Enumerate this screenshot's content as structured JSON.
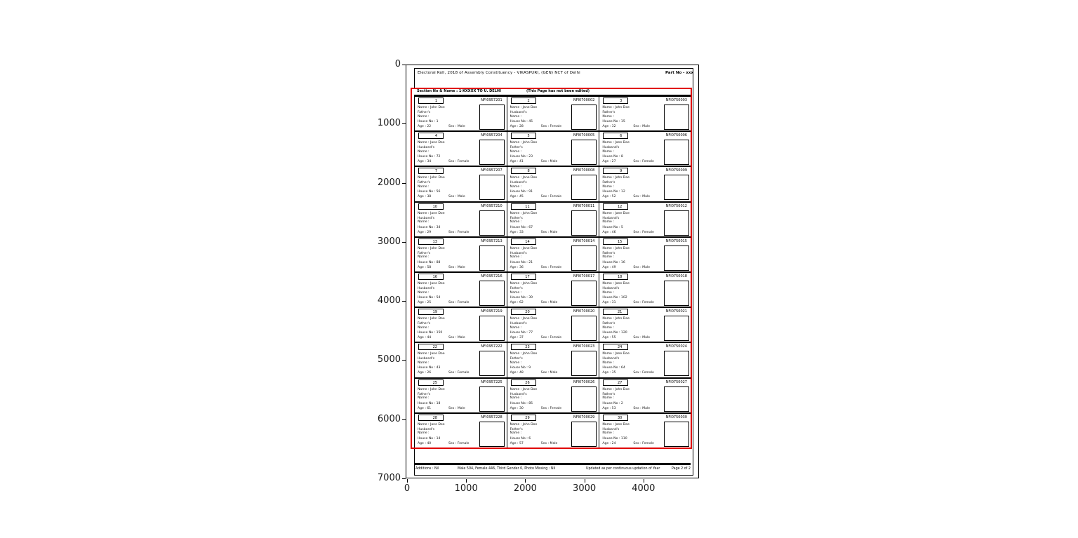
{
  "figure": {
    "x_ticks": [
      "0",
      "1000",
      "2000",
      "3000",
      "4000"
    ],
    "y_ticks": [
      "0",
      "1000",
      "2000",
      "3000",
      "4000",
      "5000",
      "6000",
      "7000"
    ]
  },
  "colors": {
    "highlight_box": "#e00000",
    "ink": "#000000",
    "background": "#ffffff"
  },
  "document": {
    "header": {
      "title": "Electoral Roll, 2018 of Assembly Constituency - VIKASPURI, (GEN) NCT of Delhi",
      "part_no": "Part No - xxx"
    },
    "section_bar": {
      "left": "Section No & Name : 1-XXXXX TO U. DELHI",
      "right": "(This Page has not been edited)"
    },
    "labels": {
      "name": "Name :",
      "house": "House No :",
      "age": "Age :",
      "sex": "Sex :"
    },
    "footer": {
      "seg1": "Additions : Nil",
      "seg2": "Male 504, Female 446, Third Gender 0, Photo Missing : Nil",
      "seg3": "Updated as per continuous updation of Year",
      "page": "Page 2 of 2"
    },
    "cards": [
      {
        "serial": "1",
        "epic": "NFI0957201",
        "name": "John Doe",
        "rel1": "Father's",
        "rel2": "Name :",
        "house": "1",
        "age": "22",
        "sex": "Male"
      },
      {
        "serial": "2",
        "epic": "NFI0700002",
        "name": "Jane Doe",
        "rel1": "Husband's",
        "rel2": "Name :",
        "house": "45",
        "age": "28",
        "sex": "Female"
      },
      {
        "serial": "3",
        "epic": "NFI0750003",
        "name": "John Doe",
        "rel1": "Father's",
        "rel2": "Name :",
        "house": "15",
        "age": "32",
        "sex": "Male"
      },
      {
        "serial": "4",
        "epic": "NFI0957204",
        "name": "Jane Doe",
        "rel1": "Husband's",
        "rel2": "Name :",
        "house": "72",
        "age": "34",
        "sex": "Female"
      },
      {
        "serial": "5",
        "epic": "NFI0700005",
        "name": "John Doe",
        "rel1": "Father's",
        "rel2": "Name :",
        "house": "23",
        "age": "41",
        "sex": "Male"
      },
      {
        "serial": "6",
        "epic": "NFI0750006",
        "name": "Jane Doe",
        "rel1": "Husband's",
        "rel2": "Name :",
        "house": "8",
        "age": "27",
        "sex": "Female"
      },
      {
        "serial": "7",
        "epic": "NFI0957207",
        "name": "John Doe",
        "rel1": "Father's",
        "rel2": "Name :",
        "house": "56",
        "age": "38",
        "sex": "Male"
      },
      {
        "serial": "8",
        "epic": "NFI0700008",
        "name": "Jane Doe",
        "rel1": "Husband's",
        "rel2": "Name :",
        "house": "91",
        "age": "45",
        "sex": "Female"
      },
      {
        "serial": "9",
        "epic": "NFI0750009",
        "name": "John Doe",
        "rel1": "Father's",
        "rel2": "Name :",
        "house": "12",
        "age": "52",
        "sex": "Male"
      },
      {
        "serial": "10",
        "epic": "NFI0957210",
        "name": "Jane Doe",
        "rel1": "Husband's",
        "rel2": "Name :",
        "house": "34",
        "age": "29",
        "sex": "Female"
      },
      {
        "serial": "11",
        "epic": "NFI0700011",
        "name": "John Doe",
        "rel1": "Father's",
        "rel2": "Name :",
        "house": "67",
        "age": "33",
        "sex": "Male"
      },
      {
        "serial": "12",
        "epic": "NFI0750012",
        "name": "Jane Doe",
        "rel1": "Husband's",
        "rel2": "Name :",
        "house": "5",
        "age": "46",
        "sex": "Female"
      },
      {
        "serial": "13",
        "epic": "NFI0957213",
        "name": "John Doe",
        "rel1": "Father's",
        "rel2": "Name :",
        "house": "88",
        "age": "58",
        "sex": "Male"
      },
      {
        "serial": "14",
        "epic": "NFI0700014",
        "name": "Jane Doe",
        "rel1": "Husband's",
        "rel2": "Name :",
        "house": "21",
        "age": "36",
        "sex": "Female"
      },
      {
        "serial": "15",
        "epic": "NFI0750015",
        "name": "John Doe",
        "rel1": "Father's",
        "rel2": "Name :",
        "house": "16",
        "age": "49",
        "sex": "Male"
      },
      {
        "serial": "16",
        "epic": "NFI0957216",
        "name": "Jane Doe",
        "rel1": "Husband's",
        "rel2": "Name :",
        "house": "54",
        "age": "25",
        "sex": "Female"
      },
      {
        "serial": "17",
        "epic": "NFI0700017",
        "name": "John Doe",
        "rel1": "Father's",
        "rel2": "Name :",
        "house": "39",
        "age": "62",
        "sex": "Male"
      },
      {
        "serial": "18",
        "epic": "NFI0750018",
        "name": "Jane Doe",
        "rel1": "Husband's",
        "rel2": "Name :",
        "house": "102",
        "age": "31",
        "sex": "Female"
      },
      {
        "serial": "19",
        "epic": "NFI0957219",
        "name": "John Doe",
        "rel1": "Father's",
        "rel2": "Name :",
        "house": "150",
        "age": "44",
        "sex": "Male"
      },
      {
        "serial": "20",
        "epic": "NFI0700020",
        "name": "Jane Doe",
        "rel1": "Husband's",
        "rel2": "Name :",
        "house": "77",
        "age": "37",
        "sex": "Female"
      },
      {
        "serial": "21",
        "epic": "NFI0750021",
        "name": "John Doe",
        "rel1": "Father's",
        "rel2": "Name :",
        "house": "120",
        "age": "55",
        "sex": "Male"
      },
      {
        "serial": "22",
        "epic": "NFI0957222",
        "name": "Jane Doe",
        "rel1": "Husband's",
        "rel2": "Name :",
        "house": "43",
        "age": "26",
        "sex": "Female"
      },
      {
        "serial": "23",
        "epic": "NFI0700023",
        "name": "John Doe",
        "rel1": "Father's",
        "rel2": "Name :",
        "house": "9",
        "age": "48",
        "sex": "Male"
      },
      {
        "serial": "24",
        "epic": "NFI0750024",
        "name": "Jane Doe",
        "rel1": "Husband's",
        "rel2": "Name :",
        "house": "64",
        "age": "35",
        "sex": "Female"
      },
      {
        "serial": "25",
        "epic": "NFI0957225",
        "name": "John Doe",
        "rel1": "Father's",
        "rel2": "Name :",
        "house": "18",
        "age": "61",
        "sex": "Male"
      },
      {
        "serial": "26",
        "epic": "NFI0700026",
        "name": "Jane Doe",
        "rel1": "Husband's",
        "rel2": "Name :",
        "house": "85",
        "age": "30",
        "sex": "Female"
      },
      {
        "serial": "27",
        "epic": "NFI0750027",
        "name": "John Doe",
        "rel1": "Father's",
        "rel2": "Name :",
        "house": "2",
        "age": "53",
        "sex": "Male"
      },
      {
        "serial": "28",
        "epic": "NFI0957228",
        "name": "Jane Doe",
        "rel1": "Husband's",
        "rel2": "Name :",
        "house": "14",
        "age": "40",
        "sex": "Female"
      },
      {
        "serial": "29",
        "epic": "NFI0700029",
        "name": "John Doe",
        "rel1": "Father's",
        "rel2": "Name :",
        "house": "6",
        "age": "57",
        "sex": "Male"
      },
      {
        "serial": "30",
        "epic": "NFI0750030",
        "name": "Jane Doe",
        "rel1": "Husband's",
        "rel2": "Name :",
        "house": "110",
        "age": "24",
        "sex": "Female"
      }
    ]
  }
}
